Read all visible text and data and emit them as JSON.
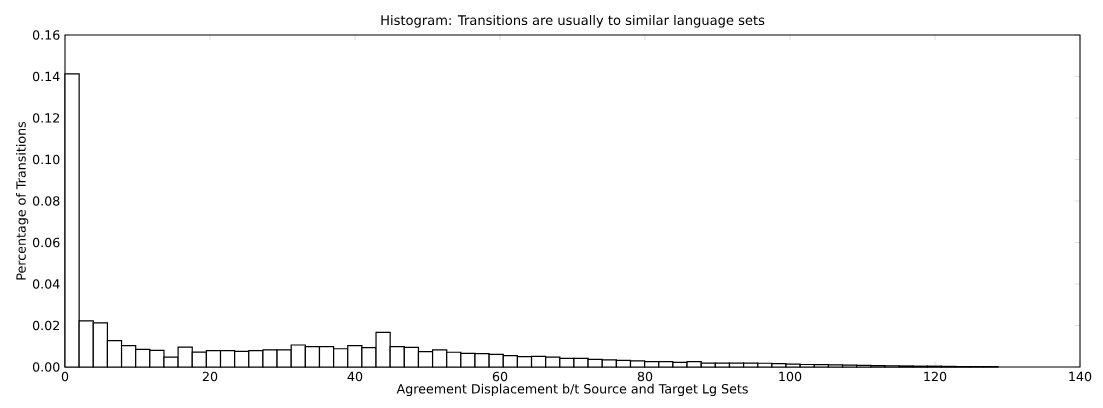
{
  "chart_data": {
    "type": "histogram",
    "title": "Histogram: Transitions are usually to similar language sets",
    "xlabel": "Agreement Displacement b/t Source and Target Lg Sets",
    "ylabel": "Percentage of Transitions",
    "bins": [
      0,
      1.95,
      3.9,
      5.85,
      7.8,
      9.75,
      11.7,
      13.65,
      15.6,
      17.55,
      19.5,
      21.45,
      23.4,
      25.35,
      27.3,
      29.25,
      31.2,
      33.15,
      35.1,
      37.05,
      39,
      40.95,
      42.9,
      44.85,
      46.8,
      48.75,
      50.7,
      52.65,
      54.6,
      56.55,
      58.5,
      60.45,
      62.4,
      64.35,
      66.3,
      68.25,
      70.2,
      72.15,
      74.1,
      76.05,
      78,
      79.95,
      81.9,
      83.85,
      85.8,
      87.75,
      89.7,
      91.65,
      93.6,
      95.55,
      97.5,
      99.45,
      101.4,
      103.35,
      105.3,
      107.25,
      109.2,
      111.15,
      113.1,
      115.05,
      117,
      118.95,
      120.9,
      122.85,
      124.8,
      126.75,
      128.7,
      130.65,
      132.6,
      134.55,
      136.5
    ],
    "values": [
      0.1413,
      0.0222,
      0.0213,
      0.0127,
      0.0103,
      0.0085,
      0.008,
      0.0048,
      0.0096,
      0.0072,
      0.0079,
      0.0079,
      0.0075,
      0.0079,
      0.0083,
      0.0083,
      0.0106,
      0.0098,
      0.0098,
      0.0088,
      0.0103,
      0.0093,
      0.0167,
      0.0098,
      0.0095,
      0.0074,
      0.0083,
      0.0071,
      0.0066,
      0.0064,
      0.0061,
      0.0055,
      0.005,
      0.0051,
      0.0048,
      0.0042,
      0.0042,
      0.0037,
      0.0034,
      0.0032,
      0.003,
      0.0026,
      0.0026,
      0.0022,
      0.0026,
      0.0019,
      0.0019,
      0.0019,
      0.0019,
      0.0018,
      0.0016,
      0.0014,
      0.0012,
      0.0011,
      0.001,
      0.0009,
      0.0008,
      0.0007,
      0.0006,
      0.0005,
      0.0004,
      0.0004,
      0.0003,
      0.0002,
      0.0002,
      0.0002,
      null,
      null,
      null,
      null
    ],
    "color": "#ffffff",
    "xlim": [
      0,
      140
    ],
    "xticks": [
      0,
      20,
      40,
      60,
      80,
      100,
      120,
      140
    ],
    "ylim": [
      0,
      0.16
    ],
    "yticks": [
      {
        "value": 0,
        "label": "0.00"
      },
      {
        "value": 0.02,
        "label": "0.02"
      },
      {
        "value": 0.04,
        "label": "0.04"
      },
      {
        "value": 0.06,
        "label": "0.06"
      },
      {
        "value": 0.08,
        "label": "0.08"
      },
      {
        "value": 0.1,
        "label": "0.10"
      },
      {
        "value": 0.12,
        "label": "0.12"
      },
      {
        "value": 0.14,
        "label": "0.14"
      },
      {
        "value": 0.16,
        "label": "0.16"
      }
    ]
  }
}
